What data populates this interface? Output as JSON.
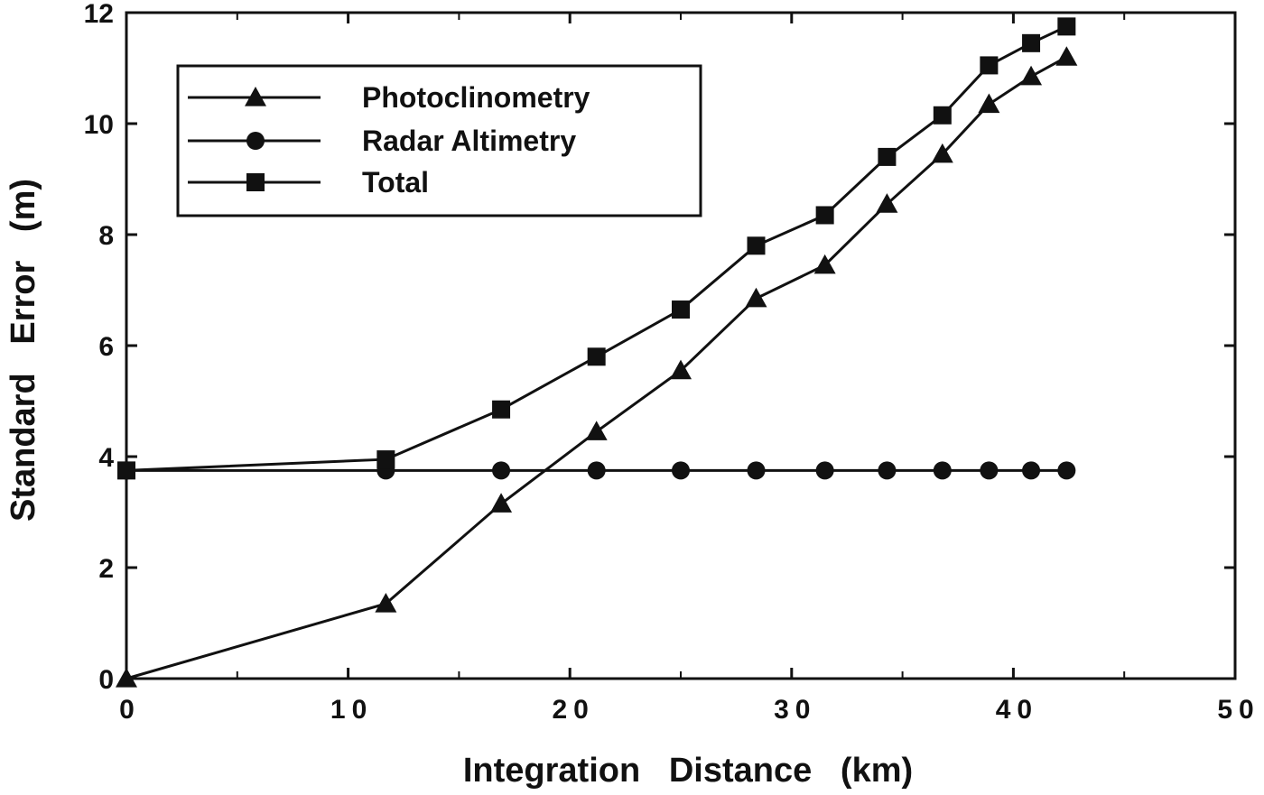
{
  "chart_data": {
    "type": "line",
    "title": "",
    "xlabel": "Integration   Distance   (km)",
    "ylabel": "Standard   Error   (m)",
    "xlim": [
      0,
      50
    ],
    "ylim": [
      0,
      12
    ],
    "xticks": [
      0,
      10,
      20,
      30,
      40,
      50
    ],
    "xtick_labels": [
      "0",
      "10",
      "20",
      "30",
      "40",
      "50"
    ],
    "yticks": [
      0,
      2,
      4,
      6,
      8,
      10,
      12
    ],
    "ytick_labels": [
      "0",
      "2",
      "4",
      "6",
      "8",
      "10",
      "12"
    ],
    "grid": false,
    "legend_position": "top-left",
    "series": [
      {
        "name": "Photoclinometry",
        "marker": "triangle",
        "x": [
          0,
          11.7,
          16.9,
          21.2,
          25.0,
          28.4,
          31.5,
          34.3,
          36.8,
          38.9,
          40.8,
          42.4
        ],
        "y": [
          0,
          1.35,
          3.15,
          4.45,
          5.55,
          6.85,
          7.45,
          8.55,
          9.45,
          10.35,
          10.85,
          11.2
        ]
      },
      {
        "name": "Radar Altimetry",
        "marker": "circle",
        "x": [
          0,
          11.7,
          16.9,
          21.2,
          25.0,
          28.4,
          31.5,
          34.3,
          36.8,
          38.9,
          40.8,
          42.4
        ],
        "y": [
          3.75,
          3.75,
          3.75,
          3.75,
          3.75,
          3.75,
          3.75,
          3.75,
          3.75,
          3.75,
          3.75,
          3.75
        ]
      },
      {
        "name": "Total",
        "marker": "square",
        "x": [
          0,
          11.7,
          16.9,
          21.2,
          25.0,
          28.4,
          31.5,
          34.3,
          36.8,
          38.9,
          40.8,
          42.4
        ],
        "y": [
          3.75,
          3.95,
          4.85,
          5.8,
          6.65,
          7.8,
          8.35,
          9.4,
          10.15,
          11.05,
          11.45,
          11.75
        ]
      }
    ]
  }
}
